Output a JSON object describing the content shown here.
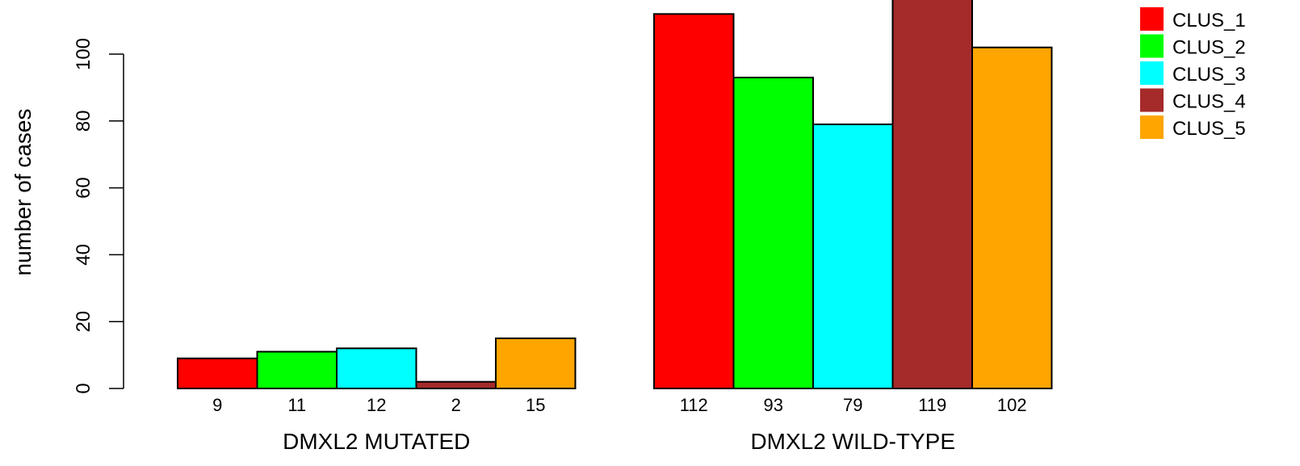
{
  "chart_data": {
    "type": "bar",
    "ylabel": "number of cases",
    "ylim": [
      0,
      112
    ],
    "yticks": [
      0,
      20,
      40,
      60,
      80,
      100
    ],
    "grid": false,
    "legend_position": "top-right",
    "groups": [
      {
        "label": "DMXL2 MUTATED",
        "values": [
          9,
          11,
          12,
          2,
          15
        ],
        "value_labels": [
          "9",
          "11",
          "12",
          "2",
          "15"
        ]
      },
      {
        "label": "DMXL2 WILD-TYPE",
        "values": [
          112,
          93,
          79,
          119,
          102
        ],
        "value_labels": [
          "112",
          "93",
          "79",
          "119",
          "102"
        ]
      }
    ],
    "series": [
      {
        "name": "CLUS_1",
        "color": "#ff0000"
      },
      {
        "name": "CLUS_2",
        "color": "#00ff00"
      },
      {
        "name": "CLUS_3",
        "color": "#00ffff"
      },
      {
        "name": "CLUS_4",
        "color": "#a52a2a"
      },
      {
        "name": "CLUS_5",
        "color": "#ffa500"
      }
    ]
  }
}
